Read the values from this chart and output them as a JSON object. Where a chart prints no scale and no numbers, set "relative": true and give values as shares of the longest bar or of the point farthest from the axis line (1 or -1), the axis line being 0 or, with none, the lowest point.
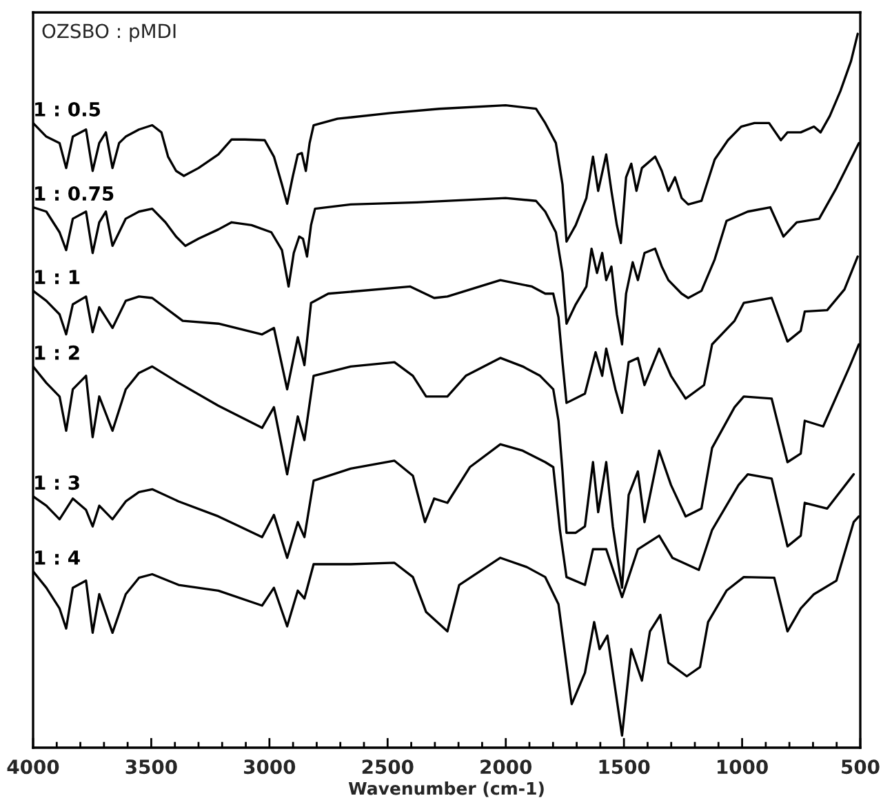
{
  "chart_data": {
    "type": "line",
    "relative": true,
    "xlabel": "Wavenumber (cm-1)",
    "annotations": [
      "OZSBO : pMDI"
    ],
    "xlim": [
      4000,
      500
    ],
    "xticks": [
      4000,
      {
        "value": 3900,
        "label": null
      },
      {
        "value": 3800,
        "label": null
      },
      {
        "value": 3700,
        "label": null
      },
      {
        "value": 3600,
        "label": null
      },
      3500,
      {
        "value": 3400,
        "label": null
      },
      {
        "value": 3300,
        "label": null
      },
      {
        "value": 3200,
        "label": null
      },
      {
        "value": 3100,
        "label": null
      },
      3000,
      {
        "value": 2900,
        "label": null
      },
      {
        "value": 2800,
        "label": null
      },
      {
        "value": 2700,
        "label": null
      },
      {
        "value": 2600,
        "label": null
      },
      2500,
      {
        "value": 2400,
        "label": null
      },
      {
        "value": 2300,
        "label": null
      },
      {
        "value": 2200,
        "label": null
      },
      {
        "value": 2100,
        "label": null
      },
      2000,
      {
        "value": 1900,
        "label": null
      },
      {
        "value": 1800,
        "label": null
      },
      {
        "value": 1700,
        "label": null
      },
      {
        "value": 1600,
        "label": null
      },
      1500,
      {
        "value": 1400,
        "label": null
      },
      {
        "value": 1300,
        "label": null
      },
      {
        "value": 1200,
        "label": null
      },
      {
        "value": 1100,
        "label": null
      },
      1000,
      {
        "value": 900,
        "label": null
      },
      {
        "value": 800,
        "label": null
      },
      {
        "value": 700,
        "label": null
      },
      {
        "value": 600,
        "label": null
      },
      500
    ],
    "grid": false,
    "legend": false,
    "marker": "none",
    "line_style": "solid",
    "series": [
      {
        "name": "1 : 0.5",
        "color": "#000000",
        "x": [
          4000,
          3944,
          3888,
          3860,
          3832,
          3776,
          3748,
          3720,
          3692,
          3664,
          3636,
          3608,
          3552,
          3496,
          3457,
          3429,
          3395,
          3362,
          3300,
          3216,
          3160,
          3104,
          3020,
          2981,
          2947,
          2925,
          2902,
          2880,
          2863,
          2846,
          2830,
          2813,
          2712,
          2488,
          2281,
          2001,
          1872,
          1833,
          1788,
          1760,
          1743,
          1704,
          1659,
          1631,
          1609,
          1575,
          1553,
          1530,
          1513,
          1491,
          1469,
          1447,
          1424,
          1368,
          1340,
          1312,
          1284,
          1256,
          1228,
          1172,
          1116,
          1060,
          1004,
          948,
          886,
          836,
          808,
          752,
          696,
          668,
          629,
          584,
          539,
          511
        ],
        "values": [
          0.875,
          0.856,
          0.847,
          0.812,
          0.856,
          0.866,
          0.808,
          0.847,
          0.862,
          0.812,
          0.847,
          0.856,
          0.866,
          0.872,
          0.862,
          0.828,
          0.808,
          0.801,
          0.812,
          0.831,
          0.852,
          0.852,
          0.851,
          0.828,
          0.789,
          0.762,
          0.799,
          0.831,
          0.833,
          0.808,
          0.847,
          0.872,
          0.881,
          0.889,
          0.895,
          0.9,
          0.895,
          0.875,
          0.847,
          0.789,
          0.709,
          0.732,
          0.77,
          0.828,
          0.78,
          0.831,
          0.78,
          0.732,
          0.707,
          0.799,
          0.818,
          0.78,
          0.812,
          0.828,
          0.808,
          0.78,
          0.799,
          0.77,
          0.761,
          0.766,
          0.824,
          0.851,
          0.87,
          0.875,
          0.875,
          0.851,
          0.862,
          0.862,
          0.87,
          0.862,
          0.885,
          0.92,
          0.962,
          1.0
        ]
      },
      {
        "name": "1 : 0.75",
        "color": "#000000",
        "x": [
          4000,
          3944,
          3888,
          3860,
          3832,
          3776,
          3748,
          3720,
          3692,
          3664,
          3608,
          3552,
          3496,
          3440,
          3395,
          3356,
          3300,
          3216,
          3160,
          3076,
          2992,
          2947,
          2919,
          2897,
          2874,
          2858,
          2841,
          2824,
          2807,
          2656,
          2376,
          2001,
          1872,
          1833,
          1788,
          1760,
          1743,
          1704,
          1659,
          1637,
          1614,
          1592,
          1575,
          1553,
          1530,
          1508,
          1491,
          1463,
          1441,
          1413,
          1368,
          1340,
          1312,
          1256,
          1228,
          1172,
          1116,
          1066,
          976,
          881,
          825,
          769,
          674,
          601,
          506
        ],
        "values": [
          0.757,
          0.751,
          0.722,
          0.697,
          0.741,
          0.751,
          0.693,
          0.736,
          0.751,
          0.703,
          0.741,
          0.751,
          0.755,
          0.736,
          0.716,
          0.703,
          0.713,
          0.726,
          0.736,
          0.732,
          0.722,
          0.697,
          0.646,
          0.693,
          0.716,
          0.713,
          0.688,
          0.732,
          0.755,
          0.761,
          0.764,
          0.77,
          0.766,
          0.751,
          0.722,
          0.665,
          0.594,
          0.621,
          0.646,
          0.699,
          0.665,
          0.693,
          0.655,
          0.674,
          0.607,
          0.565,
          0.636,
          0.68,
          0.655,
          0.693,
          0.699,
          0.674,
          0.655,
          0.636,
          0.63,
          0.64,
          0.684,
          0.738,
          0.751,
          0.757,
          0.716,
          0.736,
          0.741,
          0.784,
          0.847
        ]
      },
      {
        "name": "1 : 1",
        "color": "#000000",
        "x": [
          4000,
          3944,
          3888,
          3860,
          3832,
          3776,
          3748,
          3720,
          3664,
          3608,
          3552,
          3496,
          3367,
          3216,
          3031,
          2981,
          2925,
          2880,
          2852,
          2824,
          2751,
          2404,
          2303,
          2247,
          2023,
          1889,
          1833,
          1799,
          1777,
          1760,
          1743,
          1665,
          1620,
          1592,
          1575,
          1536,
          1508,
          1480,
          1441,
          1413,
          1351,
          1301,
          1239,
          1161,
          1127,
          1032,
          993,
          875,
          808,
          752,
          735,
          640,
          567,
          511
        ],
        "values": [
          0.64,
          0.626,
          0.607,
          0.579,
          0.621,
          0.632,
          0.582,
          0.617,
          0.588,
          0.626,
          0.632,
          0.63,
          0.598,
          0.594,
          0.579,
          0.588,
          0.502,
          0.575,
          0.536,
          0.623,
          0.636,
          0.646,
          0.63,
          0.632,
          0.655,
          0.646,
          0.636,
          0.636,
          0.603,
          0.54,
          0.483,
          0.496,
          0.554,
          0.521,
          0.559,
          0.502,
          0.469,
          0.54,
          0.546,
          0.508,
          0.559,
          0.521,
          0.489,
          0.508,
          0.565,
          0.598,
          0.623,
          0.63,
          0.569,
          0.584,
          0.611,
          0.613,
          0.642,
          0.688
        ]
      },
      {
        "name": "1 : 2",
        "color": "#000000",
        "x": [
          4000,
          3944,
          3888,
          3860,
          3832,
          3776,
          3748,
          3720,
          3664,
          3608,
          3552,
          3496,
          3384,
          3216,
          3031,
          2981,
          2925,
          2880,
          2852,
          2813,
          2656,
          2471,
          2393,
          2337,
          2247,
          2169,
          2023,
          1928,
          1855,
          1799,
          1777,
          1760,
          1743,
          1704,
          1665,
          1631,
          1609,
          1575,
          1547,
          1508,
          1480,
          1441,
          1413,
          1351,
          1301,
          1239,
          1172,
          1127,
          1032,
          993,
          875,
          808,
          752,
          735,
          657,
          545,
          506
        ],
        "values": [
          0.534,
          0.511,
          0.492,
          0.444,
          0.502,
          0.521,
          0.435,
          0.492,
          0.444,
          0.502,
          0.525,
          0.534,
          0.511,
          0.479,
          0.448,
          0.477,
          0.383,
          0.464,
          0.431,
          0.521,
          0.534,
          0.54,
          0.521,
          0.492,
          0.492,
          0.521,
          0.546,
          0.534,
          0.521,
          0.502,
          0.458,
          0.387,
          0.301,
          0.301,
          0.31,
          0.4,
          0.33,
          0.4,
          0.31,
          0.224,
          0.354,
          0.387,
          0.316,
          0.416,
          0.368,
          0.324,
          0.335,
          0.42,
          0.477,
          0.492,
          0.489,
          0.4,
          0.412,
          0.458,
          0.45,
          0.534,
          0.565
        ]
      },
      {
        "name": "1 : 3",
        "color": "#000000",
        "x": [
          4000,
          3944,
          3888,
          3832,
          3776,
          3748,
          3720,
          3664,
          3608,
          3552,
          3496,
          3384,
          3216,
          3031,
          2981,
          2925,
          2880,
          2852,
          2813,
          2656,
          2471,
          2393,
          2342,
          2303,
          2247,
          2152,
          2023,
          1928,
          1833,
          1799,
          1771,
          1743,
          1665,
          1631,
          1575,
          1508,
          1441,
          1351,
          1295,
          1183,
          1127,
          1015,
          976,
          875,
          808,
          752,
          735,
          640,
          528
        ],
        "values": [
          0.352,
          0.339,
          0.32,
          0.349,
          0.333,
          0.31,
          0.339,
          0.32,
          0.345,
          0.358,
          0.362,
          0.345,
          0.324,
          0.295,
          0.326,
          0.266,
          0.316,
          0.295,
          0.374,
          0.391,
          0.402,
          0.381,
          0.316,
          0.349,
          0.343,
          0.393,
          0.425,
          0.416,
          0.4,
          0.393,
          0.305,
          0.239,
          0.228,
          0.278,
          0.278,
          0.211,
          0.278,
          0.297,
          0.266,
          0.249,
          0.305,
          0.368,
          0.383,
          0.377,
          0.282,
          0.297,
          0.343,
          0.335,
          0.383
        ]
      },
      {
        "name": "1 : 4",
        "color": "#000000",
        "x": [
          4000,
          3944,
          3888,
          3860,
          3832,
          3776,
          3748,
          3720,
          3664,
          3608,
          3552,
          3496,
          3384,
          3216,
          3031,
          2981,
          2925,
          2880,
          2852,
          2813,
          2656,
          2471,
          2393,
          2337,
          2247,
          2197,
          2023,
          1911,
          1833,
          1777,
          1721,
          1665,
          1626,
          1603,
          1570,
          1508,
          1469,
          1424,
          1390,
          1346,
          1312,
          1234,
          1178,
          1144,
          1066,
          993,
          864,
          808,
          752,
          696,
          601,
          528,
          506
        ],
        "values": [
          0.247,
          0.224,
          0.195,
          0.167,
          0.224,
          0.234,
          0.161,
          0.215,
          0.161,
          0.215,
          0.238,
          0.243,
          0.228,
          0.22,
          0.199,
          0.224,
          0.17,
          0.22,
          0.209,
          0.257,
          0.257,
          0.259,
          0.239,
          0.19,
          0.163,
          0.228,
          0.266,
          0.253,
          0.239,
          0.201,
          0.061,
          0.105,
          0.176,
          0.138,
          0.157,
          0.017,
          0.138,
          0.094,
          0.163,
          0.186,
          0.119,
          0.1,
          0.113,
          0.176,
          0.22,
          0.239,
          0.238,
          0.163,
          0.195,
          0.215,
          0.234,
          0.316,
          0.324
        ]
      }
    ]
  }
}
